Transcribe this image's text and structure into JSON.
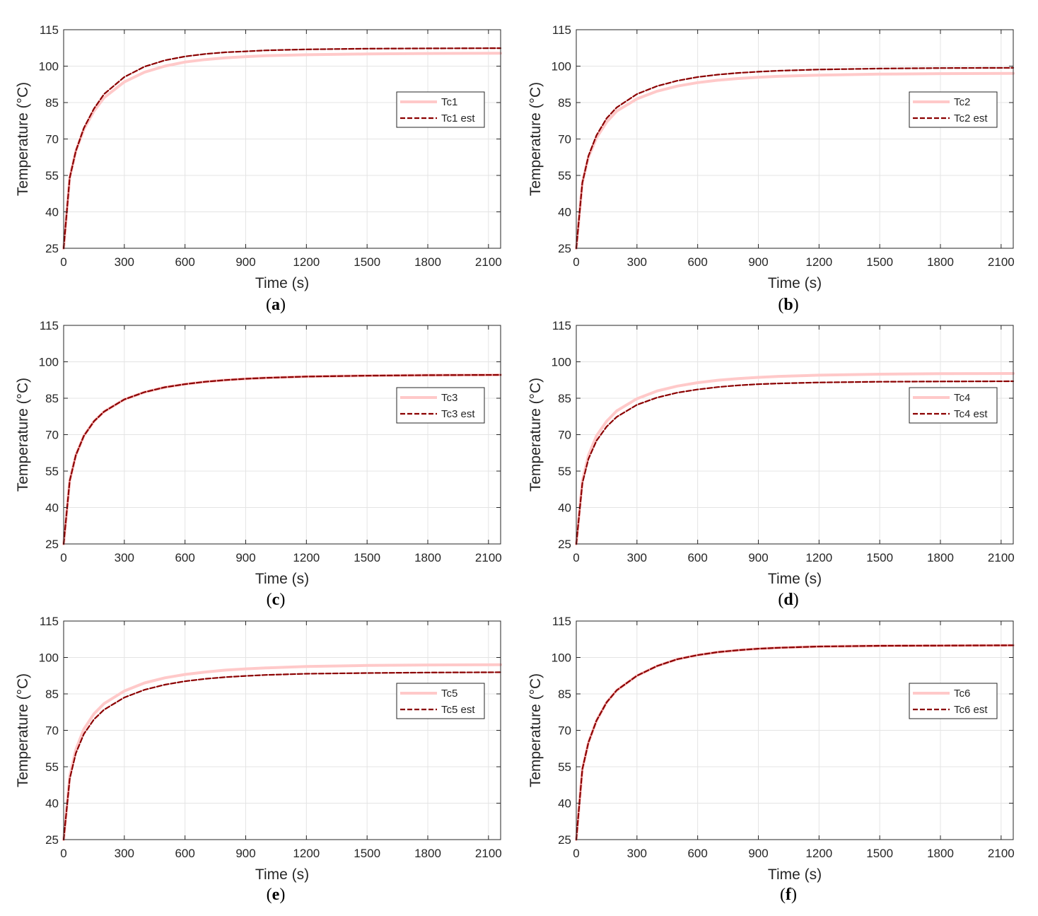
{
  "colors": {
    "measured": "#ffc9c9",
    "estimated": "#8b0000",
    "grid": "#e4e4e4",
    "axis": "#262626"
  },
  "chart_data": [
    {
      "type": "line",
      "panel_label": "a",
      "xlabel": "Time (s)",
      "ylabel": "Temperature (°C)",
      "xlim": [
        0,
        2160
      ],
      "ylim": [
        25,
        115
      ],
      "xticks": [
        0,
        300,
        600,
        900,
        1200,
        1500,
        1800,
        2100
      ],
      "yticks": [
        25,
        40,
        55,
        70,
        85,
        100,
        115
      ],
      "grid": true,
      "legend_position": "right",
      "series": [
        {
          "name": "Tc1",
          "style": "solid",
          "x": [
            0,
            30,
            60,
            100,
            150,
            200,
            300,
            400,
            500,
            600,
            700,
            800,
            900,
            1000,
            1200,
            1500,
            1800,
            2160
          ],
          "y": [
            25,
            54,
            65,
            74,
            81.5,
            87,
            93.5,
            97.5,
            100,
            101.7,
            102.7,
            103.4,
            103.9,
            104.3,
            104.7,
            105,
            105.2,
            105.3
          ]
        },
        {
          "name": "Tc1 est",
          "style": "dashed",
          "x": [
            0,
            30,
            60,
            100,
            150,
            200,
            300,
            400,
            500,
            600,
            700,
            800,
            900,
            1000,
            1200,
            1500,
            1800,
            2160
          ],
          "y": [
            25,
            54,
            65,
            74.5,
            82.5,
            88.5,
            95.5,
            99.8,
            102.4,
            104,
            105,
            105.7,
            106.1,
            106.5,
            106.9,
            107.2,
            107.3,
            107.4
          ]
        }
      ]
    },
    {
      "type": "line",
      "panel_label": "b",
      "xlabel": "Time (s)",
      "ylabel": "Temperature (°C)",
      "xlim": [
        0,
        2160
      ],
      "ylim": [
        25,
        115
      ],
      "xticks": [
        0,
        300,
        600,
        900,
        1200,
        1500,
        1800,
        2100
      ],
      "yticks": [
        25,
        40,
        55,
        70,
        85,
        100,
        115
      ],
      "grid": true,
      "legend_position": "right",
      "series": [
        {
          "name": "Tc2",
          "style": "solid",
          "x": [
            0,
            30,
            60,
            100,
            150,
            200,
            300,
            400,
            500,
            600,
            700,
            800,
            900,
            1000,
            1200,
            1500,
            1800,
            2160
          ],
          "y": [
            25,
            52,
            62.5,
            70.5,
            77,
            81.5,
            86.5,
            89.7,
            91.8,
            93.2,
            94.2,
            94.9,
            95.4,
            95.8,
            96.3,
            96.7,
            96.9,
            97
          ]
        },
        {
          "name": "Tc2 est",
          "style": "dashed",
          "x": [
            0,
            30,
            60,
            100,
            150,
            200,
            300,
            400,
            500,
            600,
            700,
            800,
            900,
            1000,
            1200,
            1500,
            1800,
            2160
          ],
          "y": [
            25,
            52,
            63,
            71.5,
            78.5,
            83,
            88.5,
            91.8,
            94,
            95.5,
            96.5,
            97.2,
            97.7,
            98.1,
            98.6,
            99,
            99.2,
            99.3
          ]
        }
      ]
    },
    {
      "type": "line",
      "panel_label": "c",
      "xlabel": "Time (s)",
      "ylabel": "Temperature (°C)",
      "xlim": [
        0,
        2160
      ],
      "ylim": [
        25,
        115
      ],
      "xticks": [
        0,
        300,
        600,
        900,
        1200,
        1500,
        1800,
        2100
      ],
      "yticks": [
        25,
        40,
        55,
        70,
        85,
        100,
        115
      ],
      "grid": true,
      "legend_position": "right",
      "series": [
        {
          "name": "Tc3",
          "style": "solid",
          "x": [
            0,
            30,
            60,
            100,
            150,
            200,
            300,
            400,
            500,
            600,
            700,
            800,
            900,
            1000,
            1200,
            1500,
            1800,
            2160
          ],
          "y": [
            25,
            51,
            61.5,
            69.5,
            75.5,
            79.5,
            84.5,
            87.5,
            89.5,
            90.8,
            91.8,
            92.5,
            93,
            93.4,
            93.9,
            94.3,
            94.5,
            94.6
          ]
        },
        {
          "name": "Tc3 est",
          "style": "dashed",
          "x": [
            0,
            30,
            60,
            100,
            150,
            200,
            300,
            400,
            500,
            600,
            700,
            800,
            900,
            1000,
            1200,
            1500,
            1800,
            2160
          ],
          "y": [
            25,
            51,
            61.5,
            69.5,
            75.5,
            79.5,
            84.5,
            87.5,
            89.5,
            90.8,
            91.8,
            92.5,
            93,
            93.4,
            93.9,
            94.3,
            94.5,
            94.6
          ]
        }
      ]
    },
    {
      "type": "line",
      "panel_label": "d",
      "xlabel": "Time (s)",
      "ylabel": "Temperature (°C)",
      "xlim": [
        0,
        2160
      ],
      "ylim": [
        25,
        115
      ],
      "xticks": [
        0,
        300,
        600,
        900,
        1200,
        1500,
        1800,
        2100
      ],
      "yticks": [
        25,
        40,
        55,
        70,
        85,
        100,
        115
      ],
      "grid": true,
      "legend_position": "right",
      "series": [
        {
          "name": "Tc4",
          "style": "solid",
          "x": [
            0,
            30,
            60,
            100,
            150,
            200,
            300,
            400,
            500,
            600,
            700,
            800,
            900,
            1000,
            1200,
            1500,
            1800,
            2160
          ],
          "y": [
            25,
            51,
            61.5,
            69.5,
            75.5,
            79.8,
            84.8,
            88,
            90,
            91.4,
            92.4,
            93.1,
            93.6,
            94,
            94.5,
            94.9,
            95.1,
            95.2
          ]
        },
        {
          "name": "Tc4 est",
          "style": "dashed",
          "x": [
            0,
            30,
            60,
            100,
            150,
            200,
            300,
            400,
            500,
            600,
            700,
            800,
            900,
            1000,
            1200,
            1500,
            1800,
            2160
          ],
          "y": [
            25,
            50,
            60,
            67.5,
            73.3,
            77.3,
            82.3,
            85.3,
            87.3,
            88.6,
            89.6,
            90.3,
            90.8,
            91.1,
            91.5,
            91.8,
            91.9,
            92
          ]
        }
      ]
    },
    {
      "type": "line",
      "panel_label": "e",
      "xlabel": "Time (s)",
      "ylabel": "Temperature (°C)",
      "xlim": [
        0,
        2160
      ],
      "ylim": [
        25,
        115
      ],
      "xticks": [
        0,
        300,
        600,
        900,
        1200,
        1500,
        1800,
        2100
      ],
      "yticks": [
        25,
        40,
        55,
        70,
        85,
        100,
        115
      ],
      "grid": true,
      "legend_position": "right",
      "series": [
        {
          "name": "Tc5",
          "style": "solid",
          "x": [
            0,
            30,
            60,
            100,
            150,
            200,
            300,
            400,
            500,
            600,
            700,
            800,
            900,
            1000,
            1200,
            1500,
            1800,
            2160
          ],
          "y": [
            25,
            51,
            62,
            70.5,
            76.8,
            81,
            86.2,
            89.5,
            91.6,
            93,
            94,
            94.8,
            95.3,
            95.7,
            96.3,
            96.7,
            96.9,
            97
          ]
        },
        {
          "name": "Tc5 est",
          "style": "dashed",
          "x": [
            0,
            30,
            60,
            100,
            150,
            200,
            300,
            400,
            500,
            600,
            700,
            800,
            900,
            1000,
            1200,
            1500,
            1800,
            2160
          ],
          "y": [
            25,
            50,
            60.5,
            68.5,
            74.5,
            78.5,
            83.5,
            86.7,
            88.8,
            90.2,
            91.2,
            91.9,
            92.4,
            92.8,
            93.3,
            93.6,
            93.8,
            93.9
          ]
        }
      ]
    },
    {
      "type": "line",
      "panel_label": "f",
      "xlabel": "Time (s)",
      "ylabel": "Temperature (°C)",
      "xlim": [
        0,
        2160
      ],
      "ylim": [
        25,
        115
      ],
      "xticks": [
        0,
        300,
        600,
        900,
        1200,
        1500,
        1800,
        2100
      ],
      "yticks": [
        25,
        40,
        55,
        70,
        85,
        100,
        115
      ],
      "grid": true,
      "legend_position": "right",
      "series": [
        {
          "name": "Tc6",
          "style": "solid",
          "x": [
            0,
            30,
            60,
            100,
            150,
            200,
            300,
            400,
            500,
            600,
            700,
            800,
            900,
            1000,
            1200,
            1500,
            1800,
            2160
          ],
          "y": [
            25,
            54,
            65,
            74,
            81.5,
            86.5,
            92.5,
            96.5,
            99.3,
            101,
            102.2,
            103,
            103.6,
            104,
            104.5,
            104.8,
            104.9,
            105
          ]
        },
        {
          "name": "Tc6 est",
          "style": "dashed",
          "x": [
            0,
            30,
            60,
            100,
            150,
            200,
            300,
            400,
            500,
            600,
            700,
            800,
            900,
            1000,
            1200,
            1500,
            1800,
            2160
          ],
          "y": [
            25,
            54,
            65,
            74,
            81.5,
            86.5,
            92.5,
            96.5,
            99.3,
            101,
            102.2,
            103,
            103.6,
            104,
            104.5,
            104.8,
            104.9,
            105
          ]
        }
      ]
    }
  ]
}
